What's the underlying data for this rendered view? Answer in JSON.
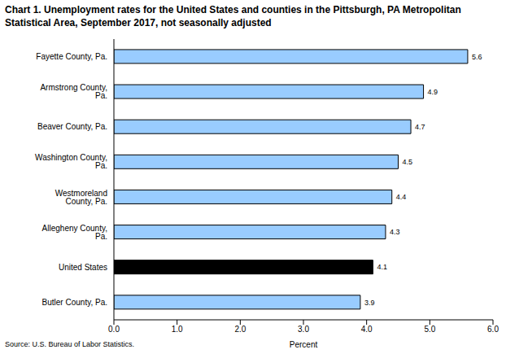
{
  "chart_data": {
    "type": "bar",
    "orientation": "horizontal",
    "title": "Chart 1. Unemployment rates for the United States and counties in the Pittsburgh, PA Metropolitan Statistical Area, September 2017, not seasonally adjusted",
    "source": "Source: U.S. Bureau of Labor Statistics.",
    "x_label": "Percent",
    "categories": [
      "Fayette County, Pa.",
      "Armstrong County, Pa.",
      "Beaver County, Pa.",
      "Washington County, Pa.",
      "Westmoreland County, Pa.",
      "Allegheny County, Pa.",
      "United States",
      "Butler County, Pa."
    ],
    "values": [
      5.6,
      4.9,
      4.7,
      4.5,
      4.4,
      4.3,
      4.1,
      3.9
    ],
    "colors": [
      "#99ccff",
      "#99ccff",
      "#99ccff",
      "#99ccff",
      "#99ccff",
      "#99ccff",
      "#000000",
      "#99ccff"
    ],
    "xlim": [
      0,
      6
    ],
    "xticks": [
      {
        "value": 0,
        "label": "0.0"
      },
      {
        "value": 1,
        "label": "1.0"
      },
      {
        "value": 2,
        "label": "2.0"
      },
      {
        "value": 3,
        "label": "3.0"
      },
      {
        "value": 4,
        "label": "4.0"
      },
      {
        "value": 5,
        "label": "5.0"
      },
      {
        "value": 6,
        "label": "6.0"
      }
    ],
    "data_labels": true,
    "grid": false
  }
}
